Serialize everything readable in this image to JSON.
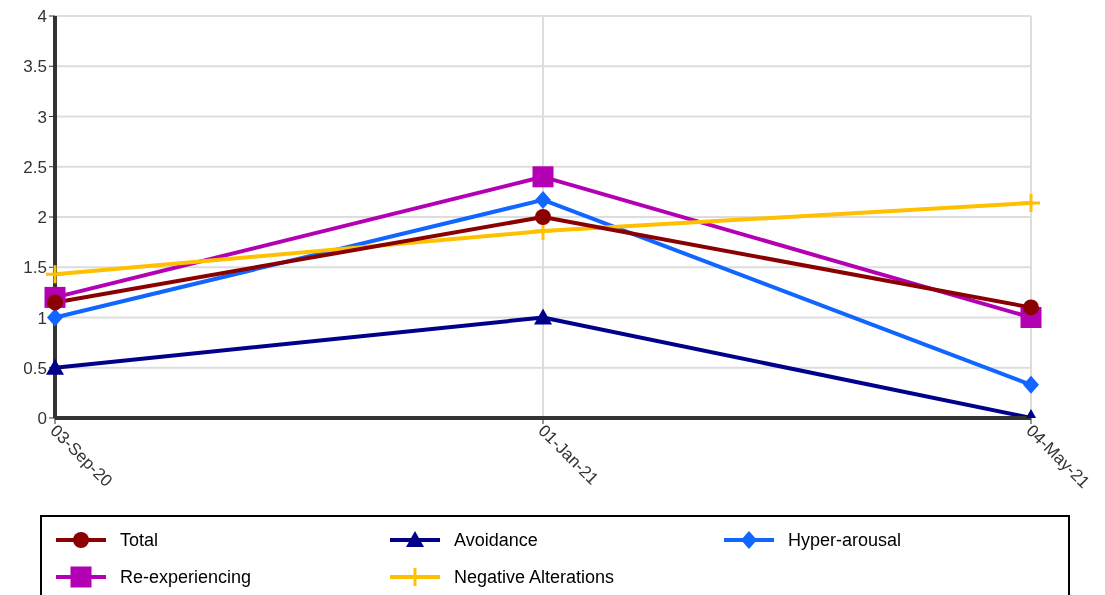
{
  "chart_data": {
    "type": "line",
    "categories": [
      "03-Sep-20",
      "01-Jan-21",
      "04-May-21"
    ],
    "series": [
      {
        "name": "Total",
        "color": "#8b0000",
        "marker": "circle",
        "values": [
          1.15,
          2.0,
          1.1
        ]
      },
      {
        "name": "Avoidance",
        "color": "#00008b",
        "marker": "triangle",
        "values": [
          0.5,
          1.0,
          0.0
        ]
      },
      {
        "name": "Hyper-arousal",
        "color": "#1166ff",
        "marker": "diamond",
        "values": [
          1.0,
          2.17,
          0.33
        ]
      },
      {
        "name": "Re-experiencing",
        "color": "#b300b3",
        "marker": "square",
        "values": [
          1.2,
          2.4,
          1.0
        ]
      },
      {
        "name": "Negative Alterations",
        "color": "#ffc000",
        "marker": "cross",
        "values": [
          1.43,
          1.86,
          2.14
        ]
      }
    ],
    "ylim": [
      0,
      4
    ],
    "yticks": [
      0,
      0.5,
      1,
      1.5,
      2,
      2.5,
      3,
      3.5,
      4
    ],
    "grid": true,
    "legend": "bottom",
    "line_style": "solid"
  }
}
